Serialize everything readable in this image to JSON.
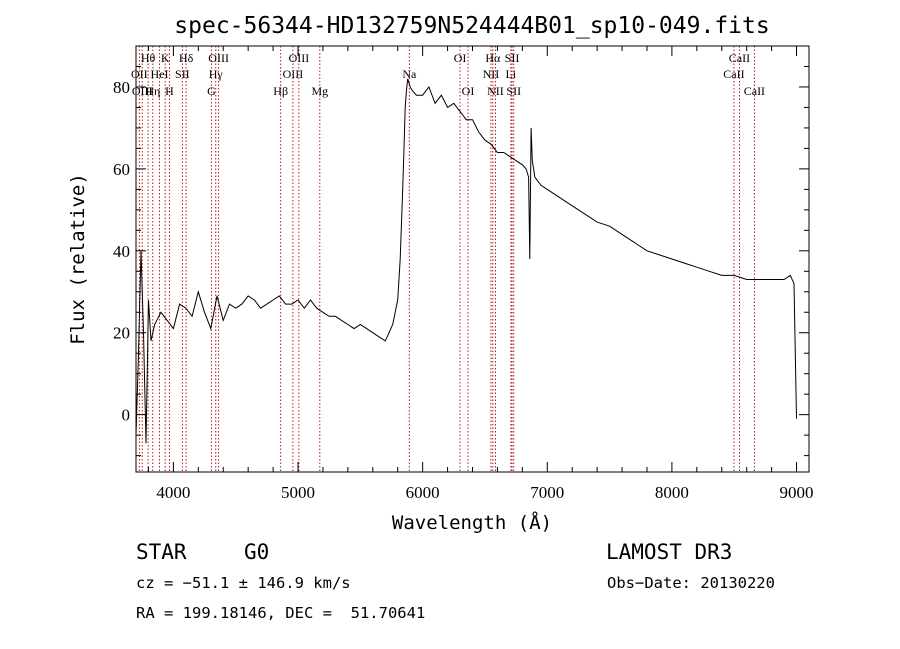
{
  "chart_data": {
    "type": "line",
    "title": "spec-56344-HD132759N524444B01_sp10-049.fits",
    "xlabel": "Wavelength (Å)",
    "ylabel": "Flux (relative)",
    "xlim": [
      3700,
      9100
    ],
    "ylim": [
      -14,
      90
    ],
    "xticks": [
      4000,
      5000,
      6000,
      7000,
      8000,
      9000
    ],
    "yticks": [
      0,
      20,
      40,
      60,
      80
    ],
    "grid": false,
    "line_color": "#000000",
    "marker_color": "#b00000",
    "series": [
      {
        "name": "flux",
        "x": [
          3700,
          3720,
          3740,
          3760,
          3780,
          3800,
          3820,
          3850,
          3900,
          3950,
          4000,
          4050,
          4100,
          4150,
          4200,
          4250,
          4300,
          4350,
          4400,
          4450,
          4500,
          4550,
          4600,
          4650,
          4700,
          4750,
          4800,
          4850,
          4900,
          4950,
          5000,
          5050,
          5100,
          5150,
          5200,
          5250,
          5300,
          5350,
          5400,
          5450,
          5500,
          5550,
          5600,
          5650,
          5700,
          5730,
          5760,
          5780,
          5800,
          5820,
          5840,
          5850,
          5860,
          5870,
          5880,
          5900,
          5920,
          5950,
          6000,
          6050,
          6100,
          6150,
          6200,
          6250,
          6300,
          6350,
          6400,
          6450,
          6500,
          6550,
          6600,
          6650,
          6700,
          6750,
          6800,
          6830,
          6850,
          6860,
          6870,
          6880,
          6890,
          6900,
          6950,
          7000,
          7100,
          7200,
          7300,
          7400,
          7500,
          7600,
          7700,
          7800,
          7900,
          8000,
          8100,
          8200,
          8300,
          8400,
          8500,
          8600,
          8700,
          8800,
          8900,
          8950,
          8980,
          9000
        ],
        "y": [
          -5,
          15,
          40,
          20,
          -7,
          28,
          18,
          22,
          25,
          23,
          21,
          27,
          26,
          24,
          30,
          25,
          21,
          29,
          23,
          27,
          26,
          27,
          29,
          28,
          26,
          27,
          28,
          29,
          27,
          27,
          28,
          26,
          28,
          26,
          25,
          24,
          24,
          23,
          22,
          21,
          22,
          21,
          20,
          19,
          18,
          20,
          22,
          25,
          28,
          38,
          55,
          65,
          75,
          79,
          82,
          80,
          79,
          78,
          78,
          80,
          76,
          78,
          75,
          76,
          74,
          72,
          72,
          69,
          67,
          66,
          64,
          64,
          63,
          62,
          61,
          60,
          58,
          38,
          70,
          62,
          60,
          58,
          56,
          55,
          53,
          51,
          49,
          47,
          46,
          44,
          42,
          40,
          39,
          38,
          37,
          36,
          35,
          34,
          34,
          33,
          33,
          33,
          33,
          34,
          32,
          -1
        ]
      }
    ],
    "lines": [
      {
        "name": "Hθ",
        "wl": 3797,
        "row": 0
      },
      {
        "name": "OII",
        "wl": 3727,
        "row": 1
      },
      {
        "name": "OIII",
        "wl": 3750,
        "row": 2
      },
      {
        "name": "K",
        "wl": 3934,
        "row": 0
      },
      {
        "name": "Hη",
        "wl": 3835,
        "row": 2
      },
      {
        "name": "HeI",
        "wl": 3889,
        "row": 1
      },
      {
        "name": "H",
        "wl": 3968,
        "row": 2
      },
      {
        "name": "Hδ",
        "wl": 4102,
        "row": 0
      },
      {
        "name": "SII",
        "wl": 4072,
        "row": 1
      },
      {
        "name": "OIII",
        "wl": 4363,
        "row": 0
      },
      {
        "name": "Hγ",
        "wl": 4340,
        "row": 1
      },
      {
        "name": "G",
        "wl": 4305,
        "row": 2
      },
      {
        "name": "Hβ",
        "wl": 4861,
        "row": 2
      },
      {
        "name": "OIII",
        "wl": 4959,
        "row": 1
      },
      {
        "name": "OIII",
        "wl": 5007,
        "row": 0
      },
      {
        "name": "Mg",
        "wl": 5175,
        "row": 2
      },
      {
        "name": "Na",
        "wl": 5893,
        "row": 1
      },
      {
        "name": "OI",
        "wl": 6300,
        "row": 0
      },
      {
        "name": "OI",
        "wl": 6364,
        "row": 2
      },
      {
        "name": "Hα",
        "wl": 6563,
        "row": 0
      },
      {
        "name": "NII",
        "wl": 6548,
        "row": 1
      },
      {
        "name": "NII",
        "wl": 6584,
        "row": 2
      },
      {
        "name": "SII",
        "wl": 6717,
        "row": 0
      },
      {
        "name": "Li",
        "wl": 6708,
        "row": 1
      },
      {
        "name": "SII",
        "wl": 6731,
        "row": 2
      },
      {
        "name": "CaII",
        "wl": 8542,
        "row": 0
      },
      {
        "name": "CaII",
        "wl": 8498,
        "row": 1
      },
      {
        "name": "CaII",
        "wl": 8662,
        "row": 2
      }
    ]
  },
  "info": {
    "class": "STAR",
    "subclass": "G0",
    "survey": "LAMOST DR3",
    "cz": "cz = −51.1 ± 146.9 km/s",
    "obsdate": "Obs−Date: 20130220",
    "coords": "RA = 199.18146, DEC =  51.70641"
  }
}
